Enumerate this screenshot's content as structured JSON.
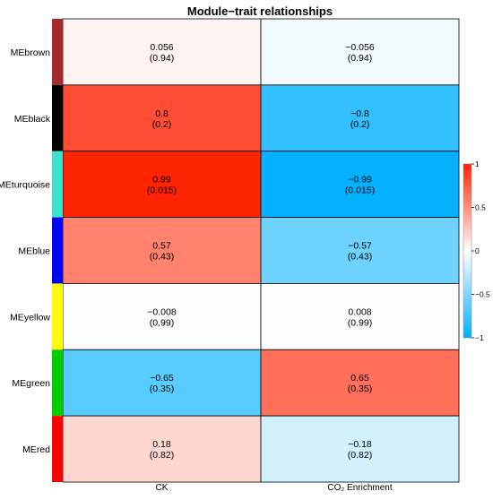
{
  "chart_data": {
    "type": "heatmap",
    "title": "Module−trait relationships",
    "xlabel": "",
    "ylabel": "",
    "columns": [
      "CK",
      "CO₂ Enrichment"
    ],
    "rows": [
      {
        "name": "MEbrown",
        "color": "#A52A2A",
        "cells": [
          {
            "r": 0.056,
            "r_text": "0.056",
            "p_text": "(0.94)"
          },
          {
            "r": -0.056,
            "r_text": "−0.056",
            "p_text": "(0.94)"
          }
        ]
      },
      {
        "name": "MEblack",
        "color": "#000000",
        "cells": [
          {
            "r": 0.8,
            "r_text": "0.8",
            "p_text": "(0.2)"
          },
          {
            "r": -0.8,
            "r_text": "−0.8",
            "p_text": "(0.2)"
          }
        ]
      },
      {
        "name": "MEturquoise",
        "color": "#40E0D0",
        "cells": [
          {
            "r": 0.99,
            "r_text": "0.99",
            "p_text": "(0.015)"
          },
          {
            "r": -0.99,
            "r_text": "−0.99",
            "p_text": "(0.015)"
          }
        ]
      },
      {
        "name": "MEblue",
        "color": "#0000FF",
        "cells": [
          {
            "r": 0.57,
            "r_text": "0.57",
            "p_text": "(0.43)"
          },
          {
            "r": -0.57,
            "r_text": "−0.57",
            "p_text": "(0.43)"
          }
        ]
      },
      {
        "name": "MEyellow",
        "color": "#FFFF00",
        "cells": [
          {
            "r": -0.008,
            "r_text": "−0.008",
            "p_text": "(0.99)"
          },
          {
            "r": 0.008,
            "r_text": "0.008",
            "p_text": "(0.99)"
          }
        ]
      },
      {
        "name": "MEgreen",
        "color": "#00CC00",
        "cells": [
          {
            "r": -0.65,
            "r_text": "−0.65",
            "p_text": "(0.35)"
          },
          {
            "r": 0.65,
            "r_text": "0.65",
            "p_text": "(0.35)"
          }
        ]
      },
      {
        "name": "MEred",
        "color": "#FF0000",
        "cells": [
          {
            "r": 0.18,
            "r_text": "0.18",
            "p_text": "(0.82)"
          },
          {
            "r": -0.18,
            "r_text": "−0.18",
            "p_text": "(0.82)"
          }
        ]
      }
    ],
    "color_scale": {
      "min": -1,
      "max": 1,
      "low_color": "#00B0FF",
      "mid_color": "#FFFFFF",
      "high_color": "#FF2200",
      "ticks": [
        1,
        0.5,
        0,
        -0.5,
        -1
      ],
      "tick_labels": [
        "1",
        "0.5",
        "0",
        "−0.5",
        "−1"
      ]
    },
    "legend_placement": "right",
    "grid": true
  }
}
